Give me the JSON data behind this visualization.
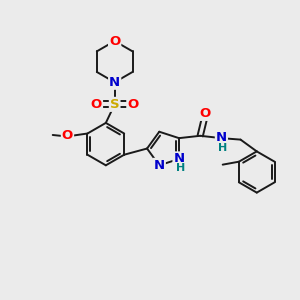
{
  "bg_color": "#ebebeb",
  "bond_color": "#1a1a1a",
  "bond_width": 1.4,
  "atom_colors": {
    "O": "#ff0000",
    "N": "#0000cc",
    "S": "#ccaa00",
    "H": "#008080"
  },
  "font_size": 9.5,
  "font_size_H": 8.0
}
